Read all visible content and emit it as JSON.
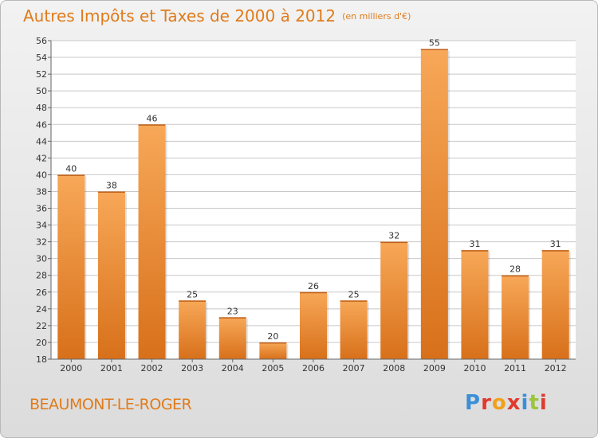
{
  "header": {
    "title": "Autres Impôts et Taxes de 2000 à 2012",
    "unit": "(en milliers d'€)"
  },
  "footer": {
    "commune": "BEAUMONT-LE-ROGER",
    "logo_text": "Proxiti",
    "logo_colors": [
      "#3a8fd8",
      "#e03a2e",
      "#f0a01a",
      "#e03a2e",
      "#3a8fd8",
      "#9bc53d",
      "#e03a2e"
    ]
  },
  "chart_data": {
    "type": "bar",
    "title": "Autres Impôts et Taxes de 2000 à 2012",
    "subtitle": "(en milliers d'€)",
    "xlabel": "",
    "ylabel": "",
    "categories": [
      "2000",
      "2001",
      "2002",
      "2003",
      "2004",
      "2005",
      "2006",
      "2007",
      "2008",
      "2009",
      "2010",
      "2011",
      "2012"
    ],
    "values": [
      40,
      38,
      46,
      25,
      23,
      20,
      26,
      25,
      32,
      55,
      31,
      28,
      31
    ],
    "ylim": [
      18,
      56
    ],
    "yticks": [
      18,
      20,
      22,
      24,
      26,
      28,
      30,
      32,
      34,
      36,
      38,
      40,
      42,
      44,
      46,
      48,
      50,
      52,
      54,
      56
    ],
    "grid": true,
    "bar_color": "#f0902a"
  }
}
